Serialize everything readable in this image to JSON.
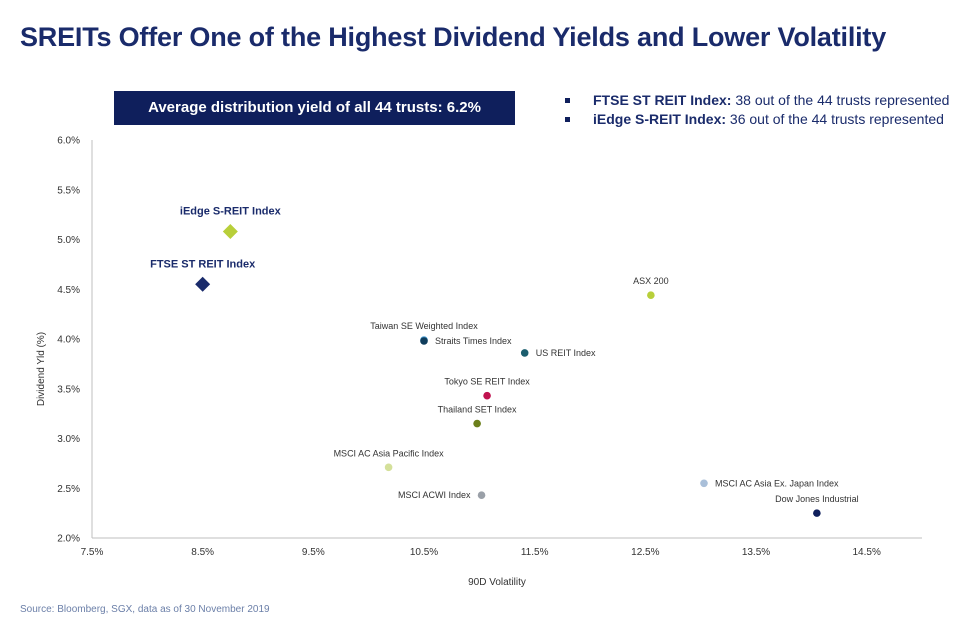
{
  "title": "SREITs Offer One of the Highest Dividend Yields and Lower Volatility",
  "callout": "Average distribution yield of all 44 trusts: 6.2%",
  "notes": [
    {
      "bold": "FTSE ST REIT Index:",
      "text": " 38 out of the 44 trusts represented"
    },
    {
      "bold": "iEdge S-REIT Index:",
      "text": " 36 out of the 44 trusts represented"
    }
  ],
  "source": "Source: Bloomberg, SGX, data as of 30 November 2019",
  "chart_data": {
    "type": "scatter",
    "xlabel": "90D Volatility",
    "ylabel": "Dividend Yld (%)",
    "xlim": [
      7.5,
      15.0
    ],
    "ylim": [
      2.0,
      6.0
    ],
    "x_ticks": [
      "7.5%",
      "8.5%",
      "9.5%",
      "10.5%",
      "11.5%",
      "12.5%",
      "13.5%",
      "14.5%"
    ],
    "y_ticks": [
      "2.0%",
      "2.5%",
      "3.0%",
      "3.5%",
      "4.0%",
      "4.5%",
      "5.0%",
      "5.5%",
      "6.0%"
    ],
    "grid": false,
    "points": [
      {
        "name": "iEdge S-REIT Index",
        "x": 8.75,
        "y": 5.08,
        "color": "#b8cf3a",
        "marker": "diamond",
        "label_pos": "above"
      },
      {
        "name": "FTSE ST REIT Index",
        "x": 8.5,
        "y": 4.55,
        "color": "#1a2b6b",
        "marker": "diamond",
        "label_pos": "above"
      },
      {
        "name": "ASX 200",
        "x": 12.55,
        "y": 4.44,
        "color": "#b8cf3a",
        "marker": "circle",
        "label_pos": "above"
      },
      {
        "name": "Taiwan SE Weighted Index",
        "x": 10.5,
        "y": 3.99,
        "color": "#4fa3d9",
        "marker": "circle",
        "label_pos": "above"
      },
      {
        "name": "Straits Times Index",
        "x": 10.5,
        "y": 3.98,
        "color": "#0f3d5c",
        "marker": "circle",
        "label_pos": "right"
      },
      {
        "name": "US REIT Index",
        "x": 11.41,
        "y": 3.86,
        "color": "#1b5e6e",
        "marker": "circle",
        "label_pos": "right"
      },
      {
        "name": "Tokyo SE REIT Index",
        "x": 11.07,
        "y": 3.43,
        "color": "#c0124f",
        "marker": "circle",
        "label_pos": "above"
      },
      {
        "name": "Thailand SET Index",
        "x": 10.98,
        "y": 3.15,
        "color": "#6b7f1a",
        "marker": "circle",
        "label_pos": "above"
      },
      {
        "name": "MSCI AC Asia Pacific Index",
        "x": 10.18,
        "y": 2.71,
        "color": "#d4e09a",
        "marker": "circle",
        "label_pos": "above"
      },
      {
        "name": "MSCI ACWI Index",
        "x": 11.02,
        "y": 2.43,
        "color": "#9aa0a8",
        "marker": "circle",
        "label_pos": "left"
      },
      {
        "name": "MSCI AC Asia Ex. Japan Index",
        "x": 13.03,
        "y": 2.55,
        "color": "#a9bfd9",
        "marker": "circle",
        "label_pos": "right"
      },
      {
        "name": "Dow Jones Industrial",
        "x": 14.05,
        "y": 2.25,
        "color": "#0f1f5c",
        "marker": "circle",
        "label_pos": "above"
      }
    ]
  }
}
